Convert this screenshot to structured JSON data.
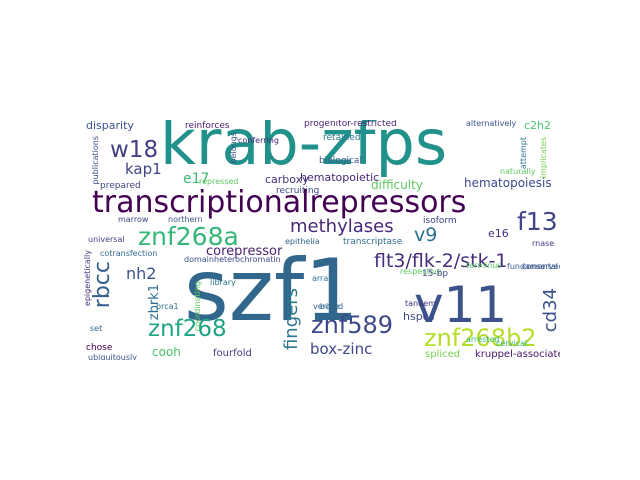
{
  "words": [
    {
      "text": "szf1",
      "color": "#31668d"
    },
    {
      "text": "krab-zfps",
      "color": "#21918c"
    },
    {
      "text": "v11",
      "color": "#3b528b"
    },
    {
      "text": "transcriptionalrepressors",
      "color": "#440154"
    },
    {
      "text": "znf268b2",
      "color": "#b5de2b"
    },
    {
      "text": "znf589",
      "color": "#3e4989"
    },
    {
      "text": "znf268a",
      "color": "#35b779"
    },
    {
      "text": "znf268",
      "color": "#20a486"
    },
    {
      "text": "flt3/flk-2/stk-1",
      "color": "#472d7b"
    },
    {
      "text": "f13",
      "color": "#414487"
    },
    {
      "text": "w18",
      "color": "#433e85"
    },
    {
      "text": "methylases",
      "color": "#482878"
    },
    {
      "text": "rbcc",
      "color": "#355f8d"
    },
    {
      "text": "fingers",
      "color": "#2a788e"
    },
    {
      "text": "box-zinc",
      "color": "#3f4889"
    },
    {
      "text": "v9",
      "color": "#2c728e"
    },
    {
      "text": "cd34",
      "color": "#3b528b"
    },
    {
      "text": "kap1",
      "color": "#414487"
    },
    {
      "text": "nh2",
      "color": "#3b528b"
    },
    {
      "text": "zbrk1",
      "color": "#2d708e"
    },
    {
      "text": "corepressor",
      "color": "#481f70"
    },
    {
      "text": "e17",
      "color": "#3dbc74"
    },
    {
      "text": "hematopoiesis",
      "color": "#3f4889"
    },
    {
      "text": "difficulty",
      "color": "#5ec962"
    },
    {
      "text": "carboxy",
      "color": "#46327e"
    },
    {
      "text": "hematopoietic",
      "color": "#482475"
    },
    {
      "text": "cooh",
      "color": "#4ac16d"
    },
    {
      "text": "fourfold",
      "color": "#443983"
    },
    {
      "text": "hspcs",
      "color": "#3e4a89"
    },
    {
      "text": "e16",
      "color": "#472c7a"
    },
    {
      "text": "spliced",
      "color": "#7ad151"
    },
    {
      "text": "disparity",
      "color": "#3b528b"
    },
    {
      "text": "c2h2",
      "color": "#4ac16d"
    },
    {
      "text": "kruppel-associated",
      "color": "#481668"
    },
    {
      "text": "retained",
      "color": "#2a788e"
    },
    {
      "text": "biological",
      "color": "#38588c"
    },
    {
      "text": "recruiting",
      "color": "#404688"
    },
    {
      "text": "transcriptase",
      "color": "#2e6f8e"
    },
    {
      "text": "isoform",
      "color": "#404688"
    },
    {
      "text": "epithelia",
      "color": "#31688e"
    },
    {
      "text": "heterochromatin",
      "color": "#3e4989"
    },
    {
      "text": "repressed",
      "color": "#5ec962"
    },
    {
      "text": "prepared",
      "color": "#414487"
    },
    {
      "text": "progenitor-restricted",
      "color": "#481f70"
    },
    {
      "text": "reinforces",
      "color": "#481a6c"
    },
    {
      "text": "conferring",
      "color": "#482878"
    },
    {
      "text": "alternatively",
      "color": "#3b528b"
    },
    {
      "text": "tandem",
      "color": "#46337e"
    },
    {
      "text": "verified",
      "color": "#365c8d"
    },
    {
      "text": "bone",
      "color": "#2c728e"
    },
    {
      "text": "chose",
      "color": "#440154"
    },
    {
      "text": "ubiquitously",
      "color": "#3b528b"
    },
    {
      "text": "library",
      "color": "#2c728e"
    },
    {
      "text": "coordinating",
      "color": "#5ec962"
    },
    {
      "text": "cotransfection",
      "color": "#31688e"
    },
    {
      "text": "universal",
      "color": "#414487"
    },
    {
      "text": "marrow",
      "color": "#3e4989"
    },
    {
      "text": "northern",
      "color": "#3b528b"
    },
    {
      "text": "brca1",
      "color": "#2c728e"
    },
    {
      "text": "domain",
      "color": "#3b528b"
    },
    {
      "text": "epigenetically",
      "color": "#46327e"
    },
    {
      "text": "set",
      "color": "#31688e"
    },
    {
      "text": "conserved",
      "color": "#3b528b"
    },
    {
      "text": "fundamental",
      "color": "#38588c"
    },
    {
      "text": "attempt",
      "color": "#2a788e"
    },
    {
      "text": "implicates",
      "color": "#7ad151"
    },
    {
      "text": "rnase",
      "color": "#443983"
    },
    {
      "text": "terminus",
      "color": "#5ec962"
    },
    {
      "text": "respective",
      "color": "#5ec962"
    },
    {
      "text": "15-bp",
      "color": "#414487"
    },
    {
      "text": "arrays",
      "color": "#2a788e"
    },
    {
      "text": "belongs",
      "color": "#3b528b"
    },
    {
      "text": "publications",
      "color": "#3e4989"
    },
    {
      "text": "cervical",
      "color": "#35b779"
    },
    {
      "text": "arrested",
      "color": "#3dbc74"
    },
    {
      "text": "naturally",
      "color": "#5ec962"
    }
  ]
}
